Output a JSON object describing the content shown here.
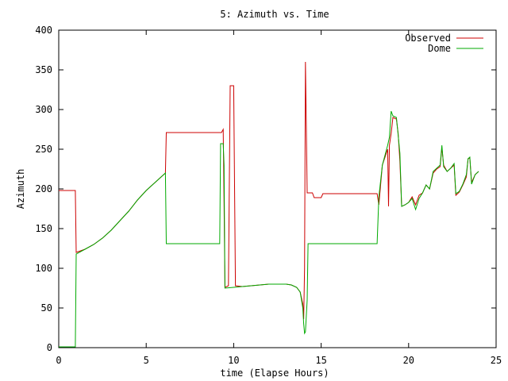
{
  "chart_data": {
    "type": "line",
    "title": "5: Azimuth vs. Time",
    "xlabel": "time (Elapse Hours)",
    "ylabel": "Azimuth",
    "xlim": [
      0,
      25
    ],
    "ylim": [
      0,
      400
    ],
    "xticks": [
      0,
      5,
      10,
      15,
      20,
      25
    ],
    "yticks": [
      0,
      50,
      100,
      150,
      200,
      250,
      300,
      350,
      400
    ],
    "grid": false,
    "legend_position": "top-right",
    "series": [
      {
        "name": "Observed",
        "color": "#cc0000",
        "points": [
          [
            0,
            198
          ],
          [
            0.95,
            198
          ],
          [
            1.0,
            120
          ],
          [
            1.5,
            124
          ],
          [
            2.0,
            130
          ],
          [
            2.5,
            138
          ],
          [
            3.0,
            148
          ],
          [
            3.5,
            160
          ],
          [
            4.0,
            172
          ],
          [
            4.5,
            186
          ],
          [
            5.0,
            198
          ],
          [
            5.5,
            208
          ],
          [
            6.0,
            218
          ],
          [
            6.1,
            220
          ],
          [
            6.15,
            271
          ],
          [
            9.3,
            271
          ],
          [
            9.4,
            275
          ],
          [
            9.45,
            180
          ],
          [
            9.5,
            76
          ],
          [
            9.7,
            78
          ],
          [
            9.8,
            330
          ],
          [
            10.0,
            330
          ],
          [
            10.1,
            78
          ],
          [
            10.5,
            77
          ],
          [
            11.0,
            78
          ],
          [
            11.5,
            79
          ],
          [
            12.0,
            80
          ],
          [
            12.5,
            80
          ],
          [
            13.0,
            80
          ],
          [
            13.3,
            79
          ],
          [
            13.6,
            76
          ],
          [
            13.8,
            70
          ],
          [
            13.95,
            55
          ],
          [
            14.0,
            36
          ],
          [
            14.05,
            100
          ],
          [
            14.1,
            360
          ],
          [
            14.15,
            280
          ],
          [
            14.2,
            195
          ],
          [
            14.5,
            195
          ],
          [
            14.6,
            189
          ],
          [
            15.0,
            189
          ],
          [
            15.1,
            194
          ],
          [
            18.2,
            194
          ],
          [
            18.3,
            180
          ],
          [
            18.5,
            230
          ],
          [
            18.8,
            250
          ],
          [
            18.85,
            178
          ],
          [
            18.9,
            255
          ],
          [
            19.0,
            270
          ],
          [
            19.1,
            290
          ],
          [
            19.3,
            288
          ],
          [
            19.4,
            270
          ],
          [
            19.5,
            235
          ],
          [
            19.6,
            178
          ],
          [
            19.8,
            180
          ],
          [
            20.0,
            183
          ],
          [
            20.2,
            190
          ],
          [
            20.4,
            180
          ],
          [
            20.6,
            192
          ],
          [
            20.8,
            195
          ],
          [
            21.0,
            205
          ],
          [
            21.2,
            200
          ],
          [
            21.4,
            220
          ],
          [
            21.6,
            225
          ],
          [
            21.8,
            228
          ],
          [
            21.9,
            252
          ],
          [
            22.0,
            230
          ],
          [
            22.2,
            222
          ],
          [
            22.4,
            226
          ],
          [
            22.6,
            230
          ],
          [
            22.7,
            192
          ],
          [
            22.9,
            196
          ],
          [
            23.1,
            205
          ],
          [
            23.3,
            215
          ],
          [
            23.4,
            238
          ],
          [
            23.5,
            239
          ],
          [
            23.6,
            208
          ],
          [
            23.8,
            218
          ],
          [
            23.9,
            220
          ],
          [
            24.0,
            222
          ]
        ]
      },
      {
        "name": "Dome",
        "color": "#00aa00",
        "points": [
          [
            0,
            1
          ],
          [
            0.95,
            1
          ],
          [
            1.0,
            118
          ],
          [
            1.5,
            124
          ],
          [
            2.0,
            130
          ],
          [
            2.5,
            138
          ],
          [
            3.0,
            148
          ],
          [
            3.5,
            160
          ],
          [
            4.0,
            172
          ],
          [
            4.5,
            186
          ],
          [
            5.0,
            198
          ],
          [
            5.5,
            208
          ],
          [
            6.0,
            218
          ],
          [
            6.1,
            220
          ],
          [
            6.15,
            131
          ],
          [
            9.2,
            131
          ],
          [
            9.25,
            257
          ],
          [
            9.4,
            257
          ],
          [
            9.45,
            230
          ],
          [
            9.5,
            75
          ],
          [
            10.0,
            76
          ],
          [
            10.5,
            77
          ],
          [
            11.0,
            78
          ],
          [
            11.5,
            79
          ],
          [
            12.0,
            80
          ],
          [
            12.5,
            80
          ],
          [
            13.0,
            80
          ],
          [
            13.3,
            79
          ],
          [
            13.6,
            76
          ],
          [
            13.8,
            70
          ],
          [
            13.95,
            50
          ],
          [
            14.0,
            30
          ],
          [
            14.05,
            18
          ],
          [
            14.1,
            20
          ],
          [
            14.2,
            60
          ],
          [
            14.25,
            131
          ],
          [
            18.2,
            131
          ],
          [
            18.3,
            190
          ],
          [
            18.5,
            230
          ],
          [
            18.8,
            255
          ],
          [
            18.9,
            265
          ],
          [
            19.0,
            298
          ],
          [
            19.1,
            292
          ],
          [
            19.3,
            290
          ],
          [
            19.4,
            268
          ],
          [
            19.5,
            245
          ],
          [
            19.6,
            178
          ],
          [
            19.8,
            180
          ],
          [
            20.0,
            183
          ],
          [
            20.2,
            188
          ],
          [
            20.4,
            174
          ],
          [
            20.6,
            188
          ],
          [
            20.8,
            195
          ],
          [
            21.0,
            205
          ],
          [
            21.2,
            200
          ],
          [
            21.4,
            222
          ],
          [
            21.6,
            226
          ],
          [
            21.8,
            230
          ],
          [
            21.9,
            255
          ],
          [
            22.0,
            228
          ],
          [
            22.2,
            222
          ],
          [
            22.4,
            226
          ],
          [
            22.6,
            232
          ],
          [
            22.7,
            194
          ],
          [
            22.9,
            197
          ],
          [
            23.1,
            206
          ],
          [
            23.3,
            218
          ],
          [
            23.4,
            238
          ],
          [
            23.5,
            240
          ],
          [
            23.6,
            206
          ],
          [
            23.8,
            218
          ],
          [
            23.9,
            220
          ],
          [
            24.0,
            222
          ]
        ]
      }
    ]
  }
}
